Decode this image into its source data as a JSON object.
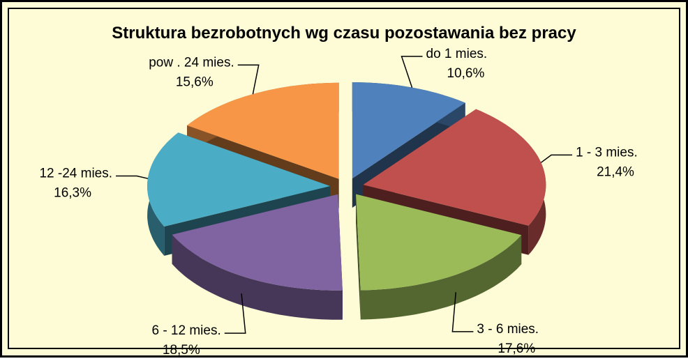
{
  "chart_data": {
    "type": "pie3d",
    "title": "Struktura bezrobotnych wg czasu pozostawania bez pracy",
    "categories": [
      "do 1 mies.",
      "1 - 3 mies.",
      "3 - 6 mies.",
      "6 - 12 mies.",
      "12 -24 mies.",
      "pow . 24 mies."
    ],
    "values": [
      10.6,
      21.4,
      17.6,
      18.5,
      16.3,
      15.6
    ],
    "value_labels": [
      "10,6%",
      "21,4%",
      "17,6%",
      "18,5%",
      "16,3%",
      "15,6%"
    ],
    "colors": [
      "#4f81bd",
      "#c0504d",
      "#9bbb59",
      "#8064a2",
      "#4bacc6",
      "#f79646"
    ]
  }
}
